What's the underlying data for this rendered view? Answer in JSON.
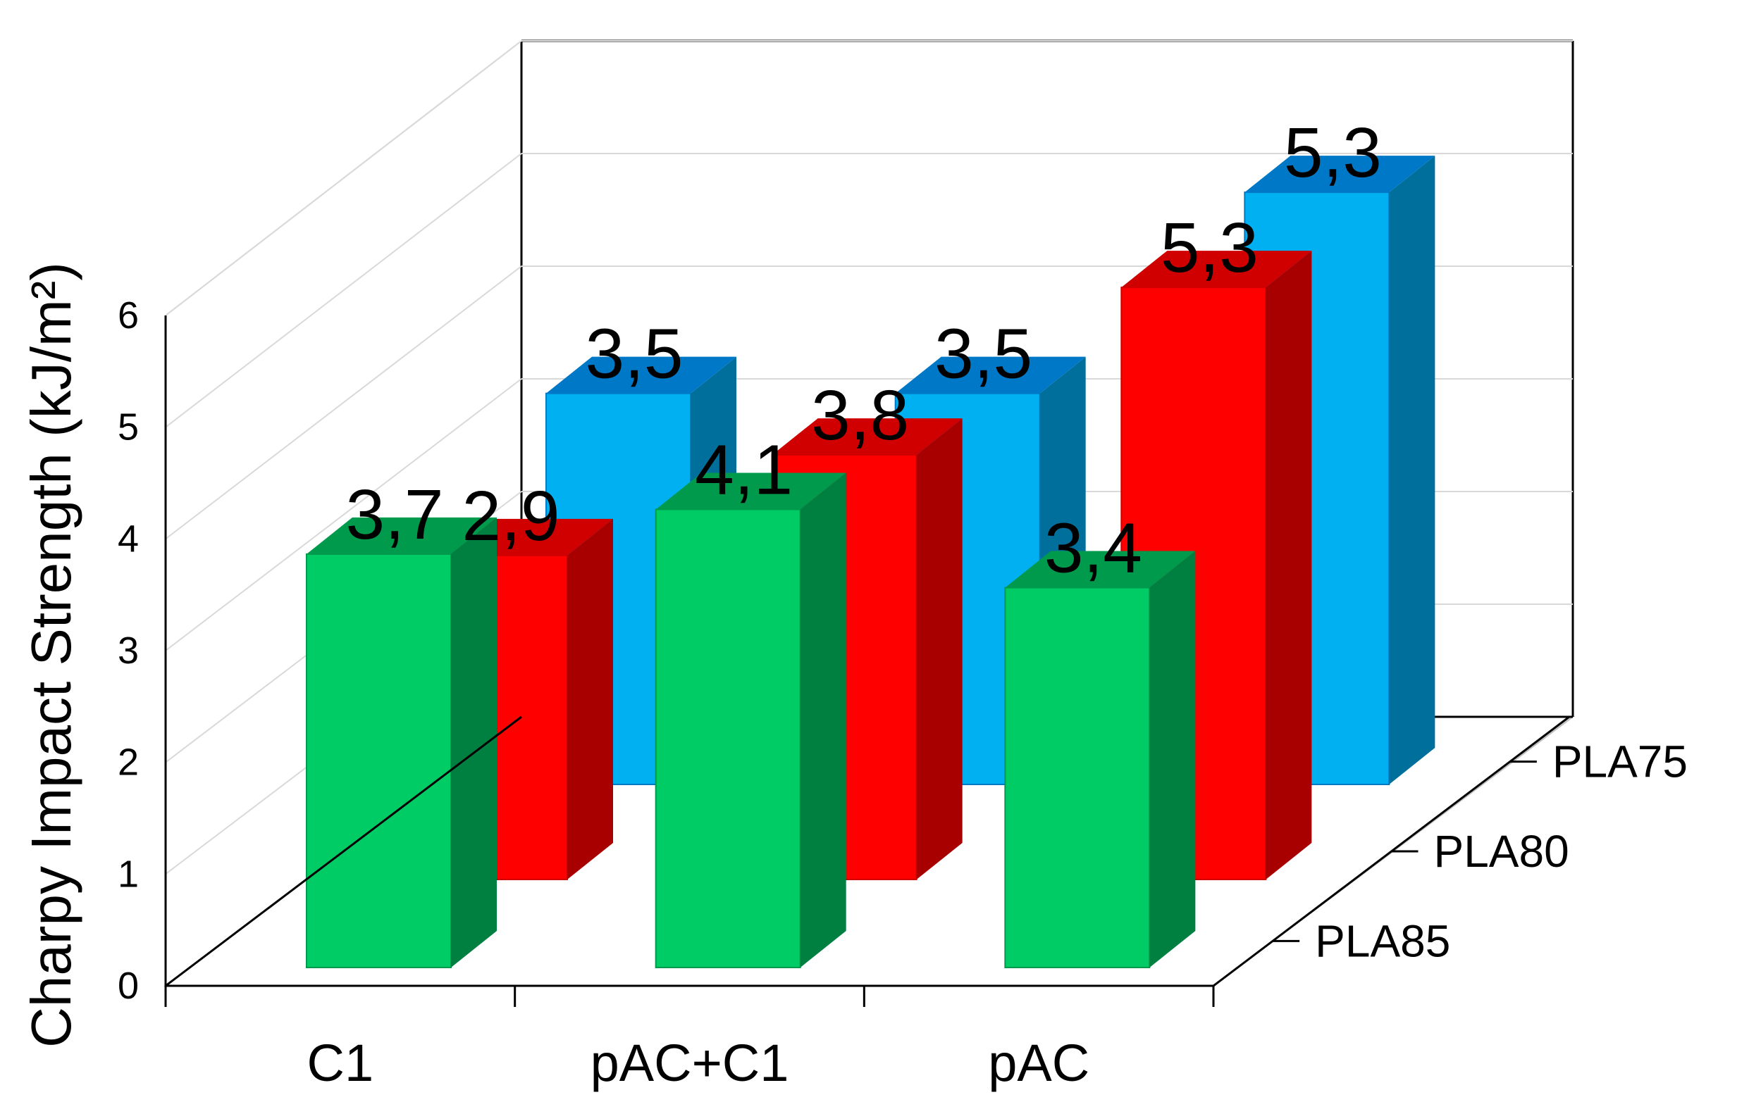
{
  "chart_data": {
    "type": "bar",
    "variant": "3d-clustered-depth",
    "title": "",
    "ylabel": "Charpy Impact Strength (kJ/m²)",
    "xlabel": "",
    "ylim": [
      0,
      6
    ],
    "yticks": [
      "0",
      "1",
      "2",
      "3",
      "4",
      "5",
      "6"
    ],
    "categories": [
      "C1",
      "pAC+C1",
      "pAC"
    ],
    "depth_labels": [
      "PLA85",
      "PLA80",
      "PLA75"
    ],
    "grid": true,
    "series": [
      {
        "name": "PLA85",
        "values": [
          3.7,
          4.1,
          3.4
        ],
        "labels": [
          "3,7",
          "4,1",
          "3,4"
        ],
        "colors": {
          "front": "#00cc66",
          "side": "#008040",
          "top": "#009a4c"
        }
      },
      {
        "name": "PLA80",
        "values": [
          2.9,
          3.8,
          5.3
        ],
        "labels": [
          "2,9",
          "3,8",
          "5,3"
        ],
        "colors": {
          "front": "#ff0000",
          "side": "#a80000",
          "top": "#d00000"
        }
      },
      {
        "name": "PLA75",
        "values": [
          3.5,
          3.5,
          5.3
        ],
        "labels": [
          "3,5",
          "3,5",
          "5,3"
        ],
        "colors": {
          "front": "#00b0f0",
          "side": "#006f9c",
          "top": "#0078c8"
        }
      }
    ]
  }
}
